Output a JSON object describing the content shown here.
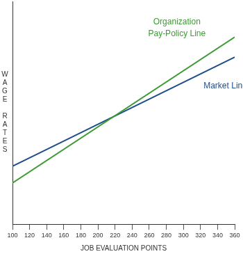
{
  "chart_data": {
    "type": "line",
    "x_label": "JOB EVALUATION POINTS",
    "y_label": "WAGE RATES",
    "x": [
      100,
      360
    ],
    "xlim": [
      100,
      360
    ],
    "xticks": [
      100,
      120,
      140,
      160,
      180,
      200,
      220,
      240,
      260,
      280,
      300,
      320,
      340,
      360
    ],
    "ylim": [
      0,
      100
    ],
    "tick_labels": "x",
    "grid": false,
    "series": [
      {
        "name": "Organization Pay-Policy Line",
        "color": "#3d9b35",
        "values": [
          18.5,
          84
        ]
      },
      {
        "name": "Market Line",
        "color": "#1f4e8c",
        "values": [
          26,
          75
        ]
      }
    ]
  }
}
